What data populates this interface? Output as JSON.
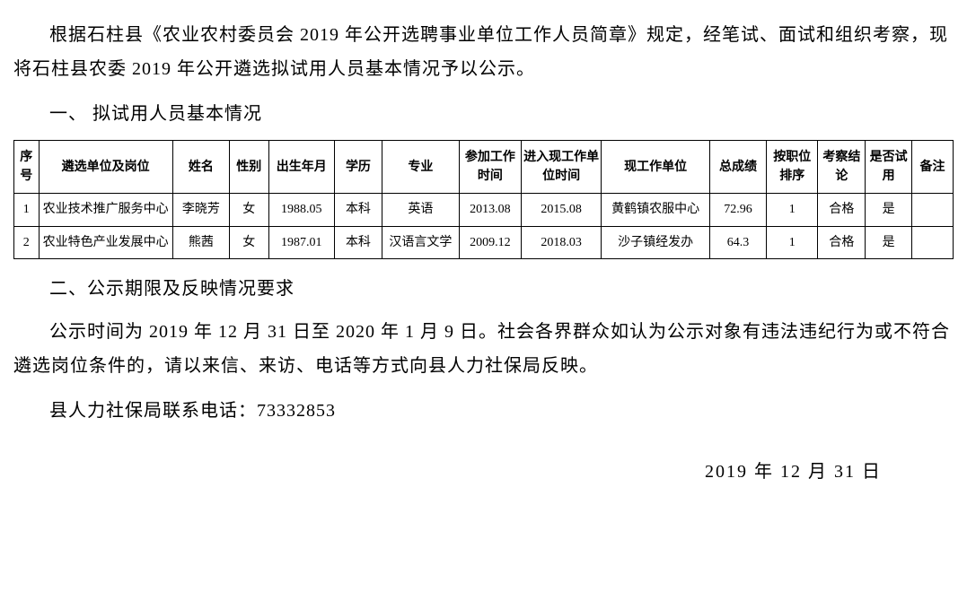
{
  "para1": "根据石柱县《农业农村委员会 2019 年公开选聘事业单位工作人员简章》规定，经笔试、面试和组织考察，现将石柱县农委 2019 年公开遴选拟试用人员基本情况予以公示。",
  "section1": "一、 拟试用人员基本情况",
  "table": {
    "headers": {
      "seq": "序号",
      "unit": "遴选单位及岗位",
      "name": "姓名",
      "sex": "性别",
      "birth": "出生年月",
      "edu": "学历",
      "major": "专业",
      "wtime": "参加工作时间",
      "ctime": "进入现工作单位时间",
      "cunit": "现工作单位",
      "score": "总成绩",
      "rank": "按职位排序",
      "exam": "考察结论",
      "trial": "是否试用",
      "note": "备注"
    },
    "rows": [
      {
        "seq": "1",
        "unit": "农业技术推广服务中心",
        "name": "李晓芳",
        "sex": "女",
        "birth": "1988.05",
        "edu": "本科",
        "major": "英语",
        "wtime": "2013.08",
        "ctime": "2015.08",
        "cunit": "黄鹤镇农服中心",
        "score": "72.96",
        "rank": "1",
        "exam": "合格",
        "trial": "是",
        "note": ""
      },
      {
        "seq": "2",
        "unit": "农业特色产业发展中心",
        "name": "熊茜",
        "sex": "女",
        "birth": "1987.01",
        "edu": "本科",
        "major": "汉语言文学",
        "wtime": "2009.12",
        "ctime": "2018.03",
        "cunit": "沙子镇经发办",
        "score": "64.3",
        "rank": "1",
        "exam": "合格",
        "trial": "是",
        "note": ""
      }
    ]
  },
  "section2": "二、公示期限及反映情况要求",
  "para2": "公示时间为 2019 年 12 月 31 日至 2020 年 1 月 9 日。社会各界群众如认为公示对象有违法违纪行为或不符合遴选岗位条件的，请以来信、来访、电话等方式向县人力社保局反映。",
  "para3": "县人力社保局联系电话：73332853",
  "dateline": "2019 年 12 月 31 日"
}
